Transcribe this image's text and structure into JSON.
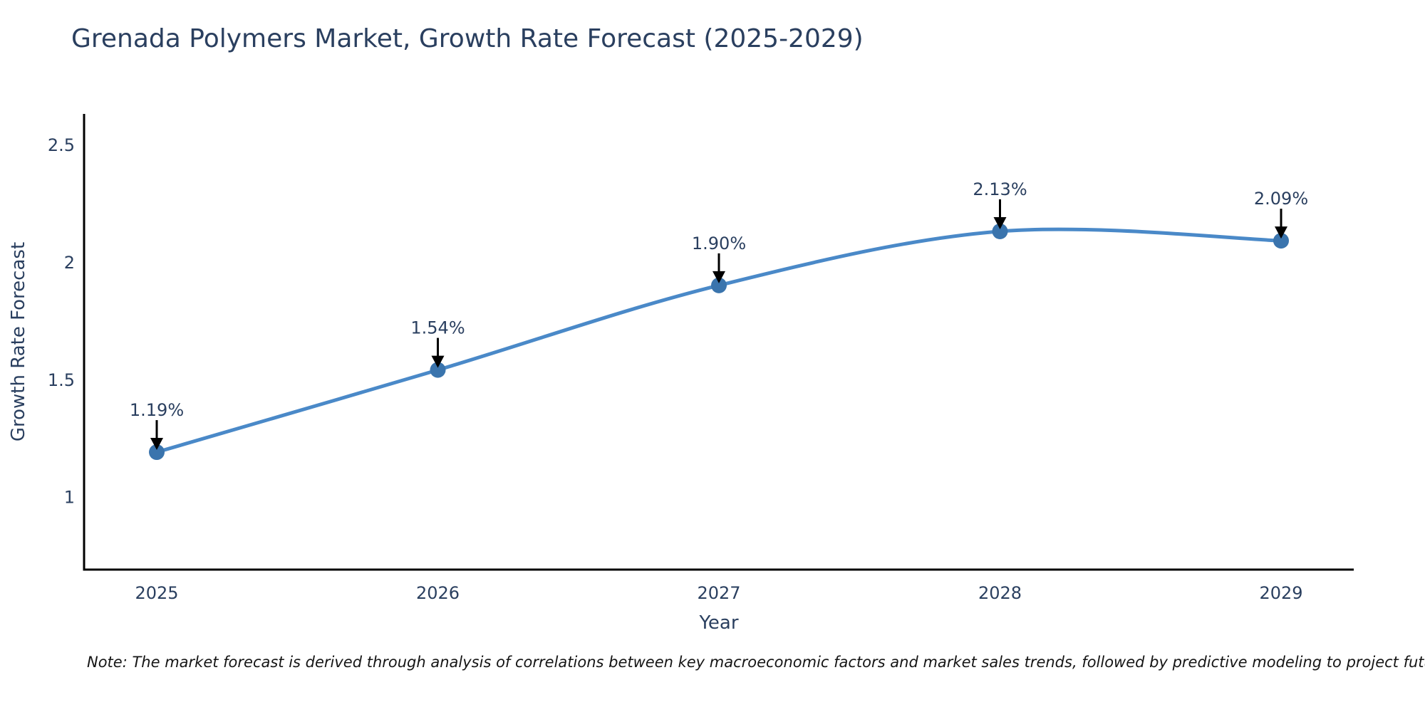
{
  "chart": {
    "title": "Grenada Polymers Market, Growth Rate Forecast (2025-2029)",
    "note": "Note: The market forecast is derived through analysis of correlations between key macroeconomic factors and market sales trends, followed by predictive modeling to project future sales"
  },
  "chart_data": {
    "type": "line",
    "title": "Grenada Polymers Market, Growth Rate Forecast (2025-2029)",
    "xlabel": "Year",
    "ylabel": "Growth Rate Forecast",
    "categories": [
      "2025",
      "2026",
      "2027",
      "2028",
      "2029"
    ],
    "series": [
      {
        "name": "Growth Rate Forecast",
        "values": [
          1.19,
          1.54,
          1.9,
          2.13,
          2.09
        ],
        "point_labels": [
          "1.19%",
          "1.54%",
          "1.90%",
          "2.13%",
          "2.09%"
        ]
      }
    ],
    "yticks": {
      "values": [
        1,
        1.5,
        2,
        2.5
      ],
      "labels": [
        "1",
        "1.5",
        "2",
        "2.5"
      ]
    },
    "ylim": [
      0.69,
      2.63
    ],
    "line_shape": "spline",
    "grid": false,
    "legend": false,
    "colors": {
      "line": "#4a89c8",
      "marker": "#3a74ad",
      "axis": "#000000",
      "text": "#2a3f5f",
      "annotation_arrow": "#000000",
      "title": "#2a3f5f",
      "note_text": "#151515",
      "background": "#ffffff"
    }
  }
}
